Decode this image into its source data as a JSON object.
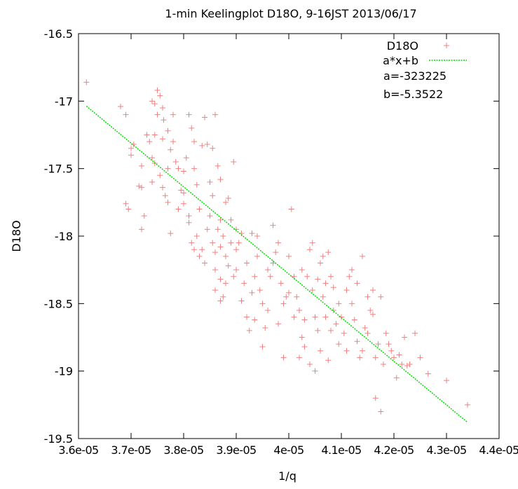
{
  "chart_data": {
    "type": "scatter",
    "title": "1-min Keelingplot D18O, 9-16JST 2013/06/17",
    "xlabel": "1/q",
    "ylabel": "D18O",
    "xlim": [
      3.6e-05,
      4.4e-05
    ],
    "ylim": [
      -19.5,
      -16.5
    ],
    "x_ticks": [
      3.6e-05,
      3.7e-05,
      3.8e-05,
      3.9e-05,
      4e-05,
      4.1e-05,
      4.2e-05,
      4.3e-05,
      4.4e-05
    ],
    "x_tick_labels": [
      "3.6e-05",
      "3.7e-05",
      "3.8e-05",
      "3.9e-05",
      "4e-05",
      "4.1e-05",
      "4.2e-05",
      "4.3e-05",
      "4.4e-05"
    ],
    "y_ticks": [
      -19.5,
      -19,
      -18.5,
      -18,
      -17.5,
      -17,
      -16.5
    ],
    "y_tick_labels": [
      "-19.5",
      "-19",
      "-18.5",
      "-18",
      "-17.5",
      "-17",
      "-16.5"
    ],
    "grid": false,
    "legend_position": "top-right",
    "series": [
      {
        "name": "D18O",
        "kind": "scatter",
        "marker": "+",
        "color": "#f08080",
        "points": [
          [
            3.615e-05,
            -16.86
          ],
          [
            3.68e-05,
            -17.04
          ],
          [
            3.69e-05,
            -17.1
          ],
          [
            3.7e-05,
            -17.35
          ],
          [
            3.705e-05,
            -17.32
          ],
          [
            3.72e-05,
            -17.48
          ],
          [
            3.715e-05,
            -17.63
          ],
          [
            3.72e-05,
            -17.64
          ],
          [
            3.72e-05,
            -17.95
          ],
          [
            3.725e-05,
            -17.85
          ],
          [
            3.69e-05,
            -17.76
          ],
          [
            3.695e-05,
            -17.8
          ],
          [
            3.7e-05,
            -17.4
          ],
          [
            3.73e-05,
            -17.25
          ],
          [
            3.735e-05,
            -17.3
          ],
          [
            3.74e-05,
            -17.42
          ],
          [
            3.74e-05,
            -17.0
          ],
          [
            3.745e-05,
            -17.02
          ],
          [
            3.75e-05,
            -17.1
          ],
          [
            3.75e-05,
            -16.92
          ],
          [
            3.755e-05,
            -16.96
          ],
          [
            3.76e-05,
            -17.05
          ],
          [
            3.762e-05,
            -17.14
          ],
          [
            3.77e-05,
            -17.22
          ],
          [
            3.755e-05,
            -17.55
          ],
          [
            3.76e-05,
            -17.64
          ],
          [
            3.765e-05,
            -17.7
          ],
          [
            3.77e-05,
            -17.75
          ],
          [
            3.775e-05,
            -17.98
          ],
          [
            3.74e-05,
            -17.6
          ],
          [
            3.745e-05,
            -17.46
          ],
          [
            3.76e-05,
            -17.28
          ],
          [
            3.77e-05,
            -17.5
          ],
          [
            3.775e-05,
            -17.36
          ],
          [
            3.78e-05,
            -17.1
          ],
          [
            3.745e-05,
            -17.25
          ],
          [
            3.78e-05,
            -17.3
          ],
          [
            3.785e-05,
            -17.45
          ],
          [
            3.79e-05,
            -17.5
          ],
          [
            3.795e-05,
            -17.66
          ],
          [
            3.8e-05,
            -17.52
          ],
          [
            3.805e-05,
            -17.42
          ],
          [
            3.81e-05,
            -17.1
          ],
          [
            3.815e-05,
            -17.2
          ],
          [
            3.82e-05,
            -17.3
          ],
          [
            3.82e-05,
            -17.5
          ],
          [
            3.825e-05,
            -17.62
          ],
          [
            3.79e-05,
            -17.8
          ],
          [
            3.8e-05,
            -17.76
          ],
          [
            3.81e-05,
            -17.9
          ],
          [
            3.815e-05,
            -18.05
          ],
          [
            3.82e-05,
            -18.1
          ],
          [
            3.825e-05,
            -18.0
          ],
          [
            3.83e-05,
            -17.8
          ],
          [
            3.835e-05,
            -17.33
          ],
          [
            3.84e-05,
            -17.12
          ],
          [
            3.845e-05,
            -17.32
          ],
          [
            3.85e-05,
            -17.6
          ],
          [
            3.855e-05,
            -17.35
          ],
          [
            3.86e-05,
            -17.1
          ],
          [
            3.865e-05,
            -17.48
          ],
          [
            3.87e-05,
            -17.58
          ],
          [
            3.8e-05,
            -17.68
          ],
          [
            3.81e-05,
            -17.85
          ],
          [
            3.83e-05,
            -18.15
          ],
          [
            3.835e-05,
            -18.1
          ],
          [
            3.84e-05,
            -18.2
          ],
          [
            3.845e-05,
            -17.95
          ],
          [
            3.85e-05,
            -17.85
          ],
          [
            3.855e-05,
            -18.05
          ],
          [
            3.86e-05,
            -18.25
          ],
          [
            3.865e-05,
            -17.95
          ],
          [
            3.87e-05,
            -18.08
          ],
          [
            3.875e-05,
            -18.0
          ],
          [
            3.88e-05,
            -17.75
          ],
          [
            3.885e-05,
            -17.72
          ],
          [
            3.89e-05,
            -17.88
          ],
          [
            3.895e-05,
            -17.45
          ],
          [
            3.86e-05,
            -18.12
          ],
          [
            3.87e-05,
            -18.32
          ],
          [
            3.875e-05,
            -18.45
          ],
          [
            3.88e-05,
            -18.15
          ],
          [
            3.885e-05,
            -18.22
          ],
          [
            3.89e-05,
            -18.05
          ],
          [
            3.895e-05,
            -18.3
          ],
          [
            3.9e-05,
            -17.95
          ],
          [
            3.9e-05,
            -18.1
          ],
          [
            3.87e-05,
            -18.48
          ],
          [
            3.88e-05,
            -18.35
          ],
          [
            3.86e-05,
            -18.4
          ],
          [
            3.855e-05,
            -17.7
          ],
          [
            3.87e-05,
            -17.88
          ],
          [
            3.9e-05,
            -18.25
          ],
          [
            3.905e-05,
            -18.05
          ],
          [
            3.91e-05,
            -17.98
          ],
          [
            3.915e-05,
            -18.35
          ],
          [
            3.92e-05,
            -18.6
          ],
          [
            3.925e-05,
            -18.7
          ],
          [
            3.93e-05,
            -18.42
          ],
          [
            3.935e-05,
            -18.3
          ],
          [
            3.94e-05,
            -18.15
          ],
          [
            3.945e-05,
            -18.4
          ],
          [
            3.95e-05,
            -18.5
          ],
          [
            3.955e-05,
            -18.68
          ],
          [
            3.96e-05,
            -18.55
          ],
          [
            3.965e-05,
            -18.3
          ],
          [
            3.97e-05,
            -18.2
          ],
          [
            3.975e-05,
            -18.12
          ],
          [
            3.98e-05,
            -18.05
          ],
          [
            3.985e-05,
            -18.35
          ],
          [
            3.99e-05,
            -18.5
          ],
          [
            3.995e-05,
            -18.45
          ],
          [
            3.94e-05,
            -18.0
          ],
          [
            3.92e-05,
            -18.2
          ],
          [
            3.93e-05,
            -17.98
          ],
          [
            3.95e-05,
            -18.82
          ],
          [
            3.96e-05,
            -18.25
          ],
          [
            3.97e-05,
            -17.92
          ],
          [
            3.98e-05,
            -18.65
          ],
          [
            3.99e-05,
            -18.9
          ],
          [
            3.91e-05,
            -18.48
          ],
          [
            3.935e-05,
            -18.62
          ],
          [
            4e-05,
            -18.15
          ],
          [
            4.005e-05,
            -17.8
          ],
          [
            4.01e-05,
            -18.3
          ],
          [
            4.015e-05,
            -18.45
          ],
          [
            4.02e-05,
            -18.55
          ],
          [
            4.025e-05,
            -18.75
          ],
          [
            4.03e-05,
            -18.82
          ],
          [
            4.035e-05,
            -18.3
          ],
          [
            4.04e-05,
            -18.1
          ],
          [
            4.045e-05,
            -18.4
          ],
          [
            4.05e-05,
            -18.6
          ],
          [
            4.055e-05,
            -18.7
          ],
          [
            4.06e-05,
            -18.2
          ],
          [
            4.065e-05,
            -18.45
          ],
          [
            4.07e-05,
            -18.35
          ],
          [
            4.075e-05,
            -18.12
          ],
          [
            4.08e-05,
            -18.3
          ],
          [
            4.085e-05,
            -18.55
          ],
          [
            4.09e-05,
            -18.65
          ],
          [
            4.095e-05,
            -18.8
          ],
          [
            4.02e-05,
            -18.9
          ],
          [
            4.03e-05,
            -18.62
          ],
          [
            4.04e-05,
            -18.95
          ],
          [
            4.05e-05,
            -19.0
          ],
          [
            4.06e-05,
            -18.85
          ],
          [
            4.07e-05,
            -18.6
          ],
          [
            4.08e-05,
            -18.7
          ],
          [
            4e-05,
            -18.42
          ],
          [
            4.01e-05,
            -18.6
          ],
          [
            4.025e-05,
            -18.25
          ],
          [
            4.045e-05,
            -18.05
          ],
          [
            4.055e-05,
            -18.32
          ],
          [
            4.065e-05,
            -18.15
          ],
          [
            4.075e-05,
            -18.92
          ],
          [
            4.085e-05,
            -18.38
          ],
          [
            4.095e-05,
            -18.5
          ],
          [
            4.1e-05,
            -18.6
          ],
          [
            4.105e-05,
            -18.72
          ],
          [
            4.11e-05,
            -18.4
          ],
          [
            4.115e-05,
            -18.3
          ],
          [
            4.12e-05,
            -18.5
          ],
          [
            4.125e-05,
            -18.62
          ],
          [
            4.13e-05,
            -18.78
          ],
          [
            4.135e-05,
            -18.9
          ],
          [
            4.14e-05,
            -18.85
          ],
          [
            4.145e-05,
            -18.68
          ],
          [
            4.15e-05,
            -18.45
          ],
          [
            4.155e-05,
            -18.55
          ],
          [
            4.16e-05,
            -18.58
          ],
          [
            4.165e-05,
            -18.9
          ],
          [
            4.17e-05,
            -18.8
          ],
          [
            4.175e-05,
            -18.45
          ],
          [
            4.18e-05,
            -18.95
          ],
          [
            4.185e-05,
            -18.72
          ],
          [
            4.19e-05,
            -18.8
          ],
          [
            4.195e-05,
            -18.85
          ],
          [
            4.12e-05,
            -18.25
          ],
          [
            4.13e-05,
            -18.35
          ],
          [
            4.14e-05,
            -18.15
          ],
          [
            4.16e-05,
            -18.4
          ],
          [
            4.165e-05,
            -19.2
          ],
          [
            4.175e-05,
            -19.3
          ],
          [
            4.11e-05,
            -18.85
          ],
          [
            4.15e-05,
            -18.72
          ],
          [
            4.2e-05,
            -18.9
          ],
          [
            4.205e-05,
            -19.05
          ],
          [
            4.21e-05,
            -18.88
          ],
          [
            4.215e-05,
            -18.95
          ],
          [
            4.22e-05,
            -18.75
          ],
          [
            4.23e-05,
            -18.95
          ],
          [
            4.24e-05,
            -18.72
          ],
          [
            4.25e-05,
            -18.9
          ],
          [
            4.265e-05,
            -19.02
          ],
          [
            4.3e-05,
            -19.07
          ],
          [
            4.34e-05,
            -19.25
          ],
          [
            4.225e-05,
            -18.96
          ]
        ]
      },
      {
        "name": "a*x+b",
        "kind": "line",
        "style": "dotted",
        "color": "#00dd00",
        "x": [
          3.615e-05,
          4.34e-05
        ]
      }
    ],
    "fit": {
      "a": -323225,
      "b": -5.3522
    },
    "annotations": [
      "a=-323225",
      "b=-5.3522"
    ]
  }
}
